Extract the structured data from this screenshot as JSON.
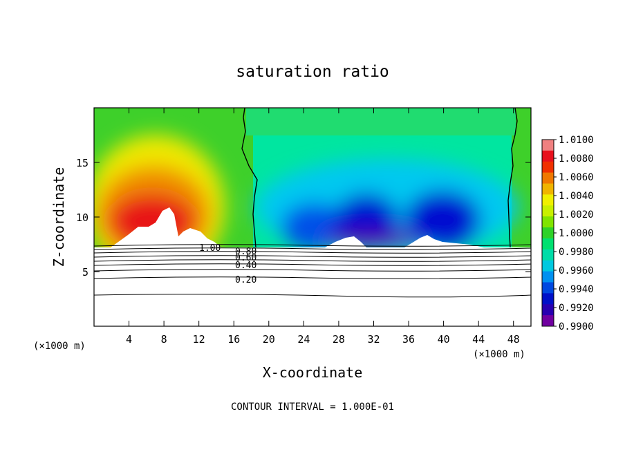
{
  "chart_data": {
    "type": "heatmap",
    "title": "saturation ratio",
    "xlabel": "X-coordinate",
    "ylabel": "Z-coordinate",
    "x_unit_left": "(×1000 m)",
    "x_unit_right": "(×1000 m)",
    "xlim": [
      0,
      50
    ],
    "ylim": [
      0,
      20
    ],
    "x_ticks": [
      "4",
      "8",
      "12",
      "16",
      "20",
      "24",
      "28",
      "32",
      "36",
      "40",
      "44",
      "48"
    ],
    "y_ticks": [
      "5",
      "10",
      "15"
    ],
    "colorbar": {
      "ticks": [
        "1.0100",
        "1.0080",
        "1.0060",
        "1.0040",
        "1.0020",
        "1.0000",
        "0.9980",
        "0.9960",
        "0.9940",
        "0.9920",
        "0.9900"
      ],
      "colors": [
        "#f08080",
        "#e8101c",
        "#f03000",
        "#f07800",
        "#f0b400",
        "#f0f000",
        "#c8f000",
        "#80e400",
        "#2ed228",
        "#00e070",
        "#00dca8",
        "#00c8e0",
        "#0090f0",
        "#0048e0",
        "#0010c8",
        "#2800b0",
        "#7000a0"
      ]
    },
    "contour_labels": [
      "1.00",
      "0.80",
      "0.60",
      "0.40",
      "0.20"
    ],
    "contour_interval": "CONTOUR INTERVAL = 1.000E-01"
  }
}
